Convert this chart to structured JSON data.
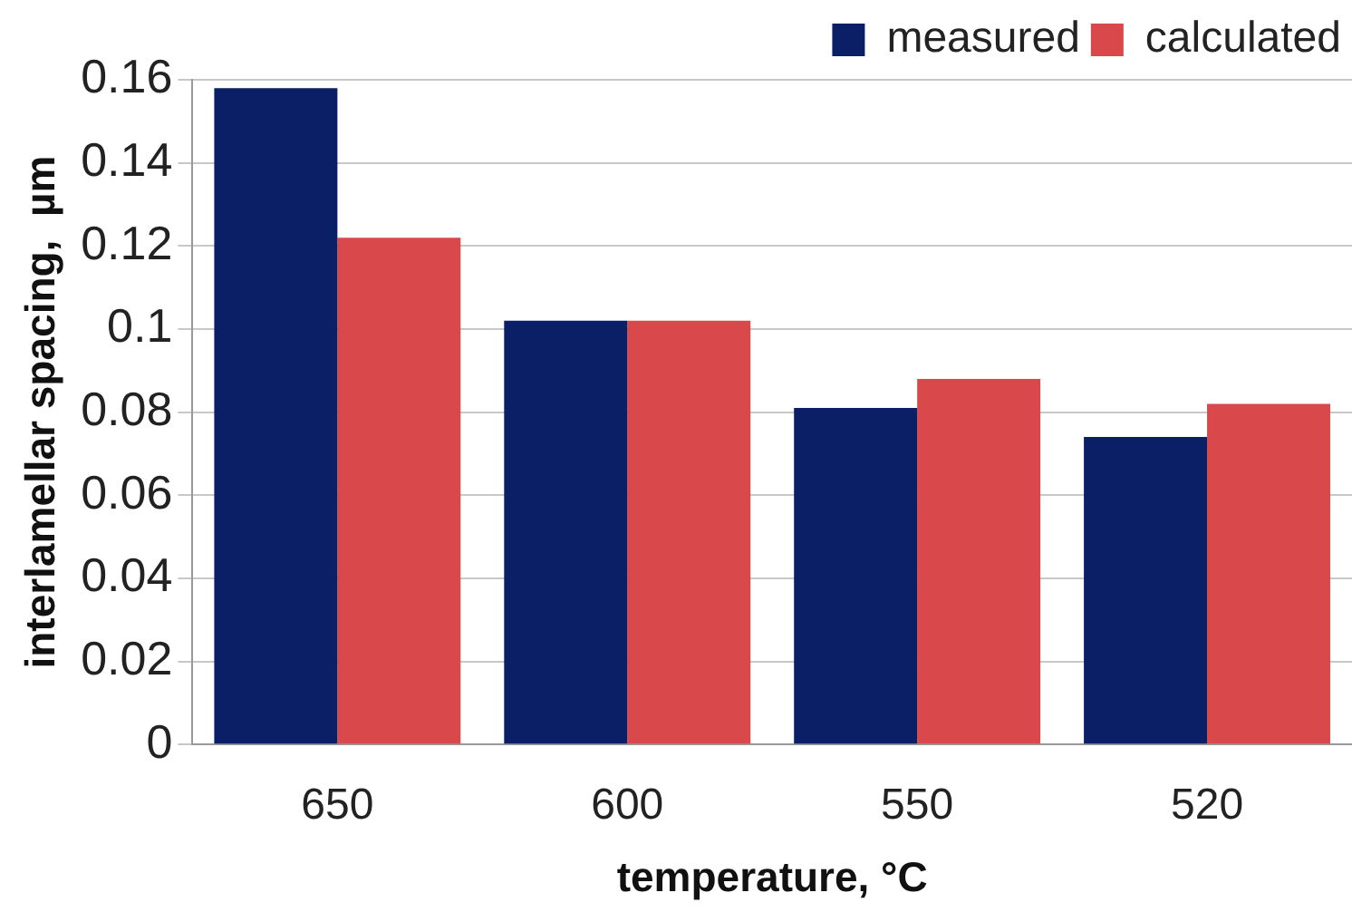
{
  "chart_data": {
    "type": "bar",
    "xlabel": "temperature, °C",
    "ylabel": "interlamellar spacing,  µm",
    "categories": [
      "650",
      "600",
      "550",
      "520"
    ],
    "series": [
      {
        "name": "measured",
        "color": "#0a1f66",
        "values": [
          0.158,
          0.102,
          0.081,
          0.074
        ]
      },
      {
        "name": "calculated",
        "color": "#d9484a",
        "values": [
          0.122,
          0.102,
          0.088,
          0.082
        ]
      }
    ],
    "ylim": [
      0,
      0.16
    ],
    "yticks": [
      0,
      0.02,
      0.04,
      0.06,
      0.08,
      0.1,
      0.12,
      0.14,
      0.16
    ],
    "grid": "y",
    "legend": "top right"
  }
}
